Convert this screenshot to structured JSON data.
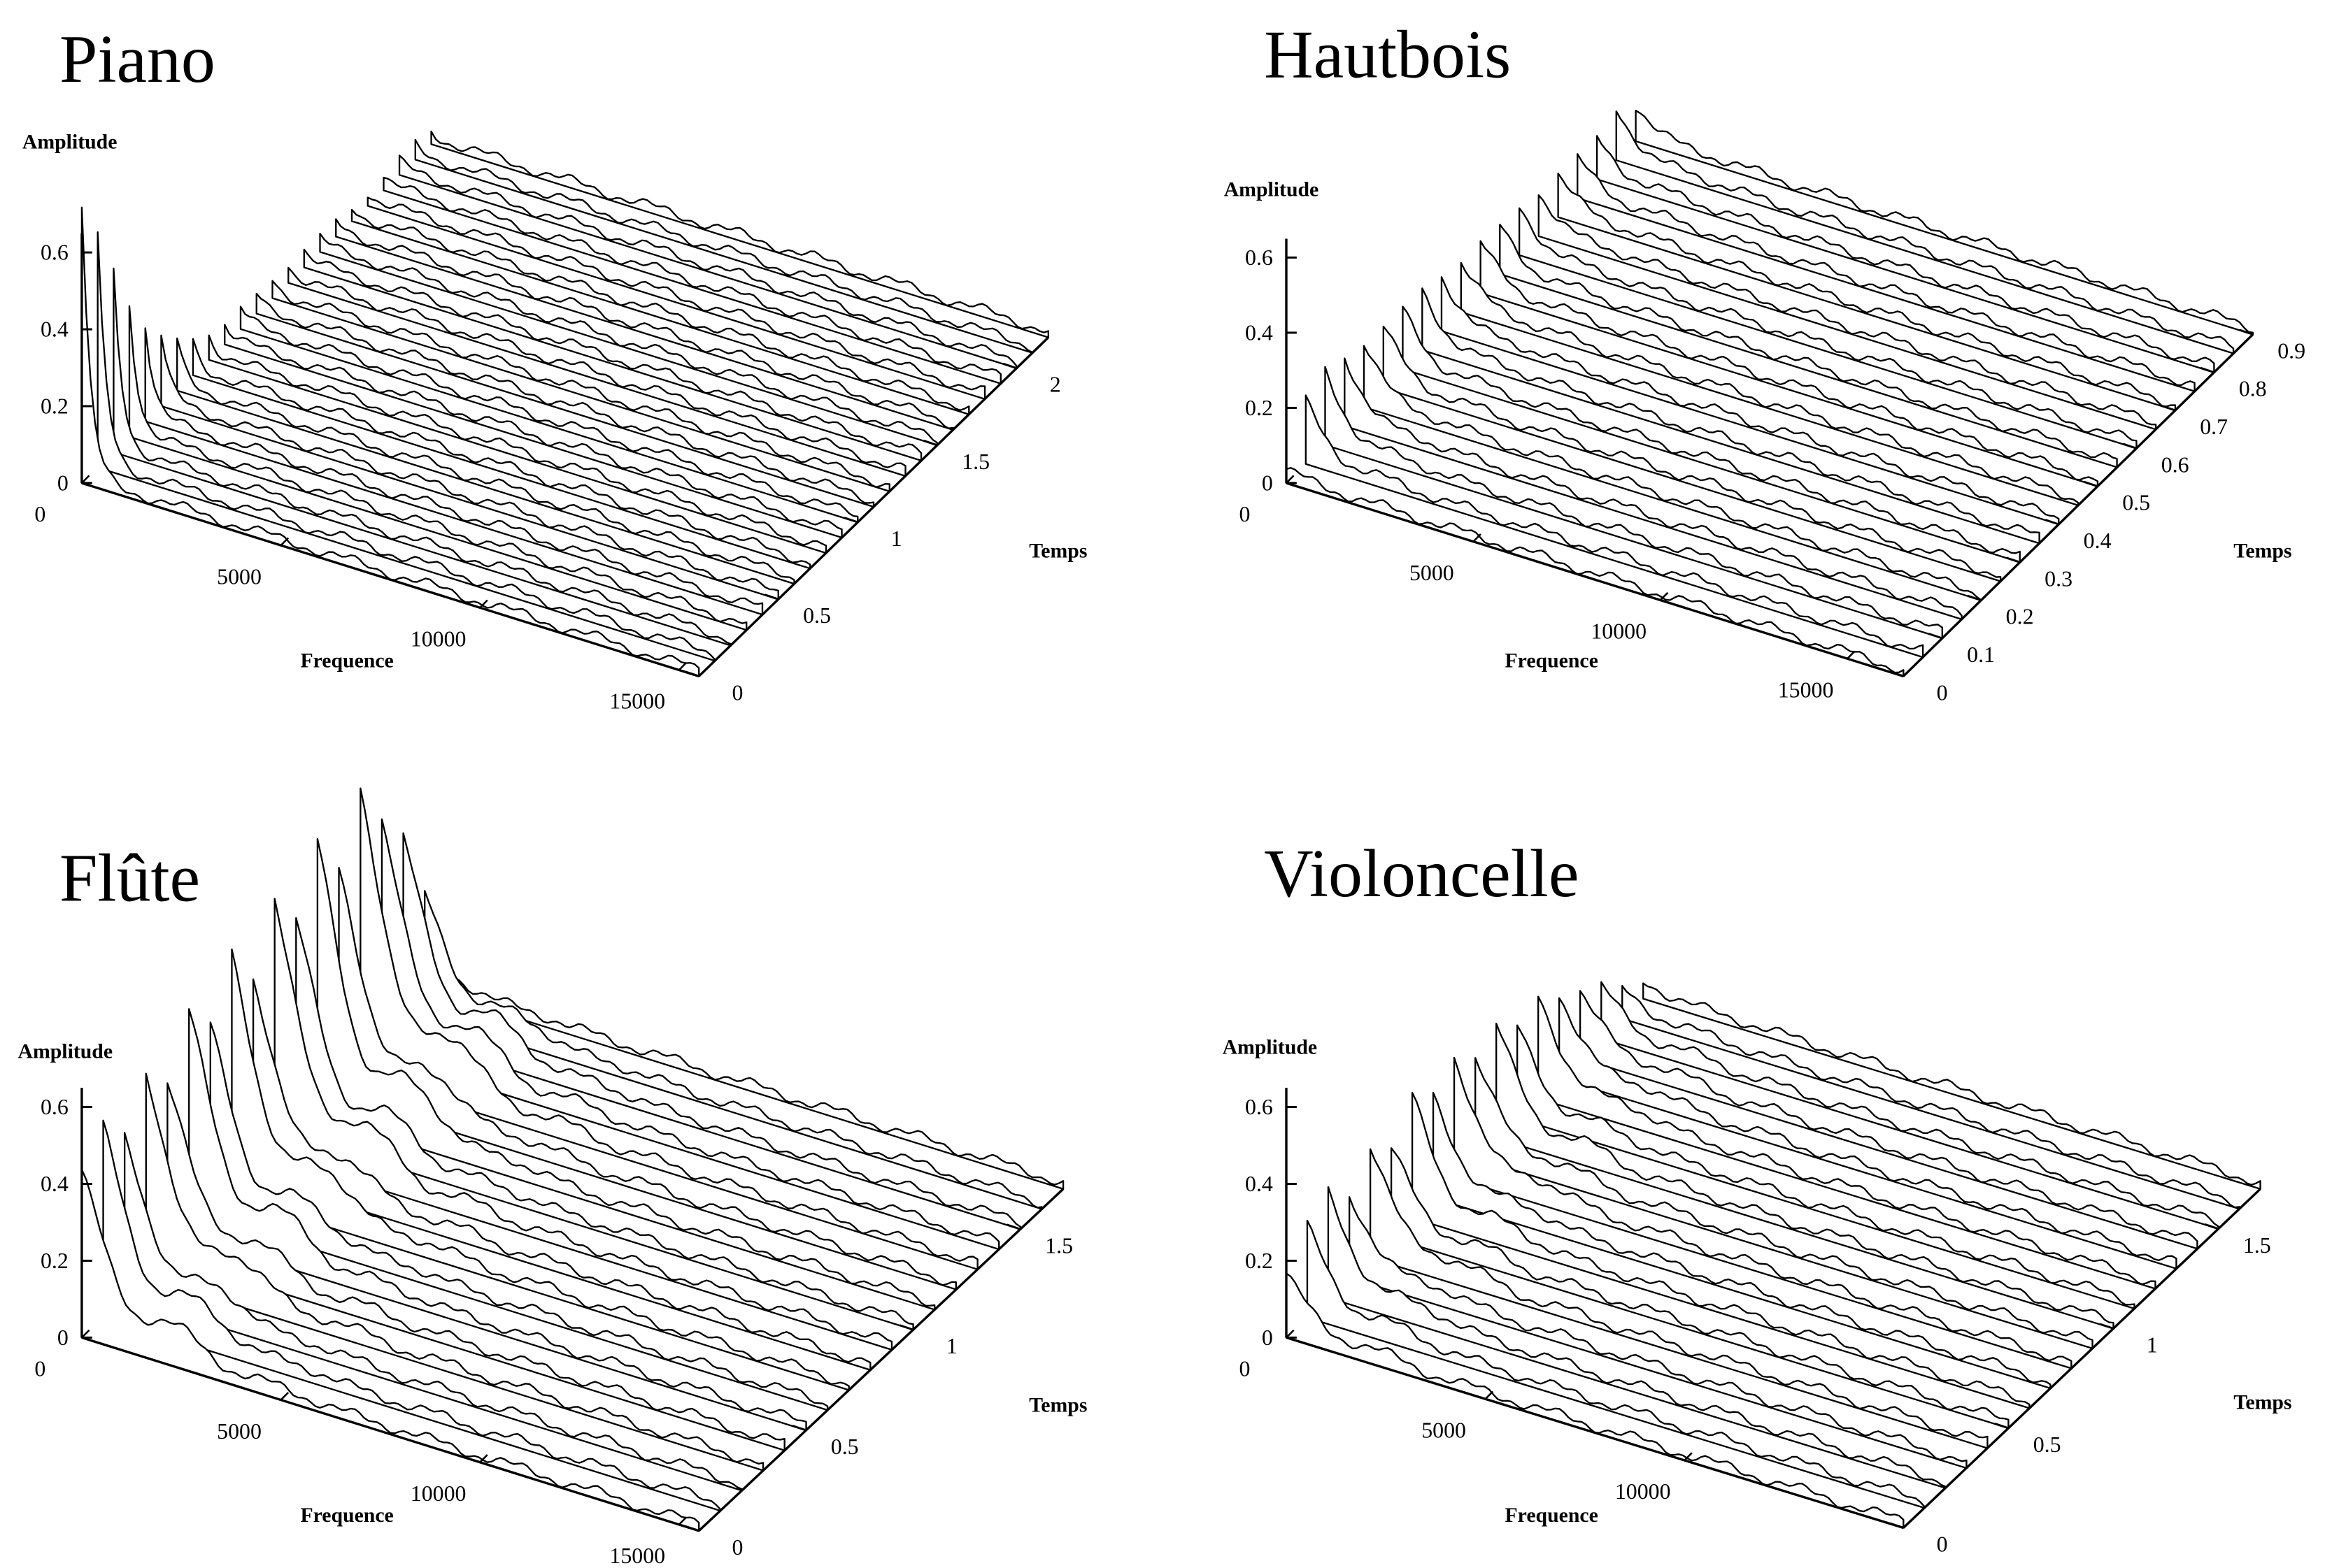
{
  "chart_data": [
    {
      "type": "waterfall",
      "title": "Piano",
      "xlabel": "Frequence",
      "ylabel": "Amplitude",
      "zlabel": "Temps",
      "color": "#000000",
      "xlim": [
        0,
        15500
      ],
      "xticks": [
        0,
        5000,
        10000,
        15000
      ],
      "ylim": [
        0,
        0.7
      ],
      "yticks": [
        0,
        0.2,
        0.4,
        0.6
      ],
      "zlim": [
        0,
        2.2
      ],
      "zticks": [
        0,
        0.5,
        1,
        1.5,
        2
      ],
      "z": [
        0,
        0.1,
        0.2,
        0.3,
        0.4,
        0.5,
        0.6,
        0.7,
        0.8,
        0.9,
        1,
        1.1,
        1.2,
        1.3,
        1.4,
        1.5,
        1.6,
        1.7,
        1.8,
        1.9,
        2,
        2.1,
        2.2
      ],
      "values": [
        0.7,
        0.58,
        0.45,
        0.33,
        0.24,
        0.17,
        0.11,
        0.07,
        0.05,
        0.04,
        0.04,
        0.03,
        0.03,
        0.03,
        0.03,
        0.02,
        0.02,
        0.02,
        0.02,
        0.02,
        0.02,
        0.02,
        0.02
      ]
    },
    {
      "type": "waterfall",
      "title": "Hautbois",
      "xlabel": "Frequence",
      "ylabel": "Amplitude",
      "zlabel": "Temps",
      "color": "#000000",
      "xlim": [
        0,
        16500
      ],
      "xticks": [
        0,
        5000,
        10000,
        15000
      ],
      "ylim": [
        0,
        0.7
      ],
      "yticks": [
        0,
        0.2,
        0.4,
        0.6
      ],
      "zlim": [
        0,
        0.9
      ],
      "zticks": [
        0,
        0.1,
        0.2,
        0.3,
        0.4,
        0.5,
        0.6,
        0.7,
        0.8,
        0.9
      ],
      "z": [
        0,
        0.05,
        0.1,
        0.15,
        0.2,
        0.25,
        0.3,
        0.35,
        0.4,
        0.45,
        0.5,
        0.55,
        0.6,
        0.65,
        0.7,
        0.75,
        0.8,
        0.85,
        0.9
      ],
      "values": [
        0.02,
        0.15,
        0.18,
        0.17,
        0.16,
        0.15,
        0.14,
        0.14,
        0.13,
        0.12,
        0.12,
        0.11,
        0.11,
        0.1,
        0.1,
        0.09,
        0.09,
        0.12,
        0.08
      ]
    },
    {
      "type": "waterfall",
      "title": "Flûte",
      "xlabel": "Frequence",
      "ylabel": "Amplitude",
      "zlabel": "Temps",
      "color": "#000000",
      "xlim": [
        0,
        15500
      ],
      "xticks": [
        0,
        5000,
        10000,
        15000
      ],
      "ylim": [
        0,
        0.7
      ],
      "yticks": [
        0,
        0.2,
        0.4,
        0.6
      ],
      "zlim": [
        0,
        1.7
      ],
      "zticks": [
        0,
        0.5,
        1,
        1.5
      ],
      "z": [
        0,
        0.1,
        0.2,
        0.3,
        0.4,
        0.5,
        0.6,
        0.7,
        0.8,
        0.9,
        1,
        1.1,
        1.2,
        1.3,
        1.4,
        1.5,
        1.6,
        1.7
      ],
      "values": [
        0.42,
        0.48,
        0.4,
        0.52,
        0.45,
        0.58,
        0.48,
        0.62,
        0.5,
        0.66,
        0.55,
        0.7,
        0.58,
        0.74,
        0.6,
        0.5,
        0.3,
        0.05
      ]
    },
    {
      "type": "waterfall",
      "title": "Violoncelle",
      "xlabel": "Frequence",
      "ylabel": "Amplitude",
      "zlabel": "Temps",
      "color": "#000000",
      "xlim": [
        0,
        15500
      ],
      "xticks": [
        0,
        5000,
        10000
      ],
      "ylim": [
        0,
        0.7
      ],
      "yticks": [
        0,
        0.2,
        0.4,
        0.6
      ],
      "zlim": [
        0,
        1.7
      ],
      "zticks": [
        0,
        0.5,
        1,
        1.5
      ],
      "z": [
        0,
        0.1,
        0.2,
        0.3,
        0.4,
        0.5,
        0.6,
        0.7,
        0.8,
        0.9,
        1,
        1.1,
        1.2,
        1.3,
        1.4,
        1.5,
        1.6,
        1.7
      ],
      "values": [
        0.15,
        0.22,
        0.26,
        0.2,
        0.28,
        0.22,
        0.3,
        0.25,
        0.3,
        0.25,
        0.28,
        0.22,
        0.25,
        0.2,
        0.16,
        0.12,
        0.06,
        0.03
      ]
    }
  ]
}
